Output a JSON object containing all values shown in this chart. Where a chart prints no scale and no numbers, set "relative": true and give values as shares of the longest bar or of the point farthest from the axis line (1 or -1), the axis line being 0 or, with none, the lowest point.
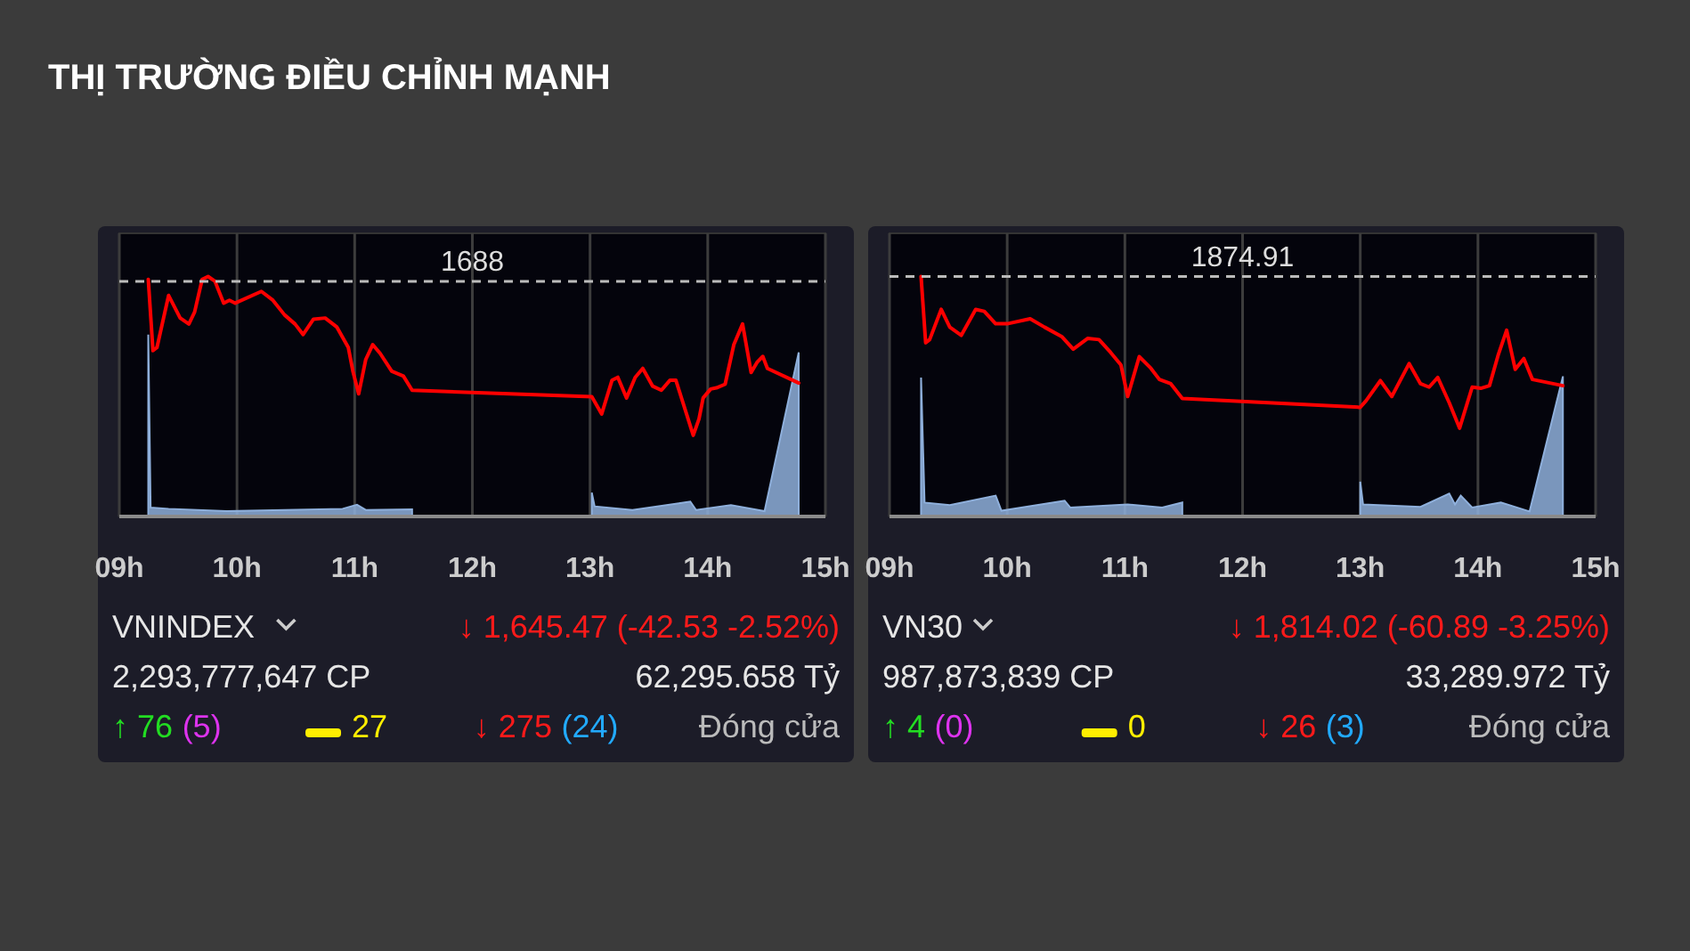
{
  "chart_data": [
    {
      "type": "line",
      "title": "THỊ TRƯỜNG ĐIỀU CHỈNH MẠNH",
      "relative": true,
      "grid": "x",
      "marker": "none",
      "xlim": [
        9,
        15
      ],
      "xticks": [
        {
          "value": 9,
          "label": "09h"
        },
        {
          "value": 10,
          "label": "10h"
        },
        {
          "value": 11,
          "label": "11h"
        },
        {
          "value": 12,
          "label": "12h"
        },
        {
          "value": 13,
          "label": "13h"
        },
        {
          "value": 14,
          "label": "14h"
        },
        {
          "value": 15,
          "label": "15h"
        }
      ],
      "series": [
        {
          "type": "area",
          "color": "#8fb0dc",
          "x": [
            9.246,
            9.266,
            9.419,
            9.911,
            10.404,
            10.897,
            11.02,
            11.094,
            11.488,
            12.25,
            13.015,
            13.039,
            13.36,
            13.852,
            13.901,
            14.197,
            14.483,
            14.773
          ],
          "values": [
            0.758,
            0.037,
            0.032,
            0.022,
            0.027,
            0.032,
            0.049,
            0.027,
            0.03,
            null,
            0.099,
            0.042,
            0.027,
            0.062,
            0.027,
            0.047,
            0.022,
            0.684
          ]
        },
        {
          "color": "#ff0000",
          "x": [
            9.246,
            9.286,
            9.32,
            9.419,
            9.517,
            9.591,
            9.64,
            9.704,
            9.754,
            9.813,
            9.887,
            9.936,
            9.985,
            10.207,
            10.305,
            10.404,
            10.493,
            10.562,
            10.65,
            10.749,
            10.847,
            10.946,
            10.985,
            11.034,
            11.094,
            11.153,
            11.217,
            11.315,
            11.414,
            11.488,
            13.015,
            13.099,
            13.187,
            13.236,
            13.31,
            13.384,
            13.448,
            13.532,
            13.606,
            13.68,
            13.729,
            13.793,
            13.877,
            13.926,
            13.961,
            14.025,
            14.074,
            14.148,
            14.222,
            14.296,
            14.369,
            14.419,
            14.468,
            14.507,
            14.773
          ],
          "values": [
            0.988,
            0.691,
            0.704,
            0.921,
            0.827,
            0.802,
            0.852,
            0.988,
            1,
            0.98,
            0.889,
            0.901,
            0.889,
            0.938,
            0.901,
            0.84,
            0.802,
            0.758,
            0.822,
            0.827,
            0.79,
            0.704,
            0.605,
            0.511,
            0.654,
            0.716,
            0.679,
            0.605,
            0.585,
            0.526,
            0.499,
            0.427,
            0.568,
            0.58,
            0.494,
            0.58,
            0.617,
            0.543,
            0.526,
            0.568,
            0.568,
            0.469,
            0.338,
            0.407,
            0.494,
            0.531,
            0.536,
            0.551,
            0.716,
            0.802,
            0.6,
            0.642,
            0.667,
            0.617,
            0.556
          ]
        }
      ],
      "ref_lines": [
        {
          "axis": "y",
          "value": 0.98,
          "color": "#bbbbbb",
          "line_style": "dashed"
        }
      ],
      "annotations": [
        "VNINDEX",
        "↓ 1,645.47 (-42.53 -2.52%)",
        "2,293,777,647 CP",
        "62,295.658 Tỷ",
        "↑ 76",
        "(5)",
        "27",
        "↓ 275",
        "(24)",
        "Đóng cửa",
        {
          "text": "1688",
          "x": 12,
          "y": 0.98
        }
      ]
    },
    {
      "type": "line",
      "relative": true,
      "grid": "x",
      "marker": "none",
      "xlim": [
        9,
        15
      ],
      "xticks": [
        {
          "value": 9,
          "label": "09h"
        },
        {
          "value": 10,
          "label": "10h"
        },
        {
          "value": 11,
          "label": "11h"
        },
        {
          "value": 12,
          "label": "12h"
        },
        {
          "value": 13,
          "label": "13h"
        },
        {
          "value": 14,
          "label": "14h"
        },
        {
          "value": 15,
          "label": "15h"
        }
      ],
      "series": [
        {
          "type": "area",
          "color": "#8fb0dc",
          "x": [
            9.268,
            9.298,
            9.512,
            9.902,
            9.951,
            10.488,
            10.537,
            11.024,
            11.317,
            11.488,
            12.25,
            13.0,
            13.024,
            13.512,
            13.756,
            13.805,
            13.854,
            13.951,
            14.195,
            14.439,
            14.722
          ],
          "values": [
            0.579,
            0.058,
            0.047,
            0.087,
            0.024,
            0.066,
            0.037,
            0.05,
            0.037,
            0.058,
            null,
            0.145,
            0.05,
            0.04,
            0.095,
            0.05,
            0.087,
            0.037,
            0.058,
            0.021,
            0.584
          ]
        },
        {
          "color": "#ff0000",
          "x": [
            9.268,
            9.307,
            9.341,
            9.439,
            9.512,
            9.61,
            9.732,
            9.805,
            9.902,
            10.0,
            10.195,
            10.317,
            10.463,
            10.561,
            10.683,
            10.78,
            10.878,
            10.966,
            11.024,
            11.122,
            11.22,
            11.293,
            11.39,
            11.488,
            13.0,
            13.049,
            13.171,
            13.268,
            13.415,
            13.512,
            13.585,
            13.659,
            13.756,
            13.844,
            13.951,
            14.024,
            14.098,
            14.171,
            14.244,
            14.317,
            14.39,
            14.463,
            14.722
          ],
          "values": [
            1,
            0.724,
            0.737,
            0.863,
            0.789,
            0.755,
            0.863,
            0.855,
            0.803,
            0.803,
            0.824,
            0.789,
            0.75,
            0.697,
            0.742,
            0.737,
            0.684,
            0.632,
            0.5,
            0.666,
            0.618,
            0.571,
            0.553,
            0.492,
            0.455,
            0.482,
            0.566,
            0.5,
            0.637,
            0.553,
            0.539,
            0.579,
            0.474,
            0.368,
            0.539,
            0.534,
            0.545,
            0.671,
            0.776,
            0.613,
            0.658,
            0.571,
            0.545
          ]
        }
      ],
      "ref_lines": [
        {
          "axis": "y",
          "value": 1,
          "color": "#bbbbbb",
          "line_style": "dashed"
        }
      ],
      "annotations": [
        "VN30",
        "↓ 1,814.02 (-60.89 -3.25%)",
        "987,873,839 CP",
        "33,289.972 Tỷ",
        "↑ 4",
        "(0)",
        "0",
        "↓ 26",
        "(3)",
        "Đóng cửa",
        {
          "text": "1874.91",
          "x": 12,
          "y": 1
        }
      ]
    }
  ]
}
